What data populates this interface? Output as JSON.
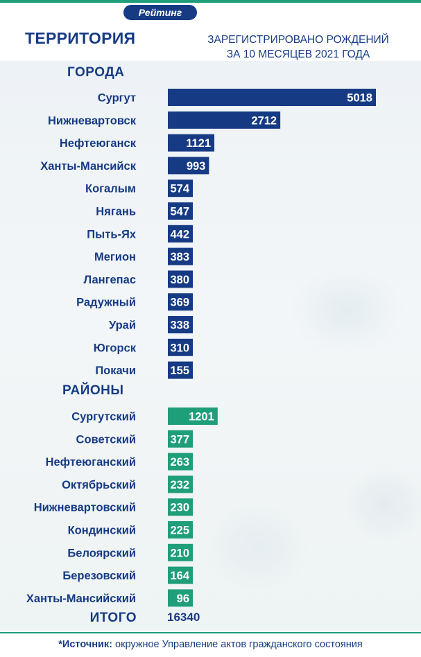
{
  "header": {
    "badge": "Рейтинг",
    "column_territory": "ТЕРРИТОРИЯ",
    "column_value_line1": "ЗАРЕГИСТРИРОВАНО РОЖДЕНИЙ",
    "column_value_line2": "ЗА 10 МЕСЯЦЕВ 2021 ГОДА"
  },
  "colors": {
    "cities": "#163b84",
    "districts": "#1f9e7a",
    "accent": "#1f9e7a"
  },
  "chart_data": {
    "type": "bar",
    "orientation": "horizontal",
    "xlim": [
      0,
      5018
    ],
    "groups": [
      {
        "name": "ГОРОДА",
        "categories": [
          "Сургут",
          "Нижневартовск",
          "Нефтеюганск",
          "Ханты-Мансийск",
          "Когалым",
          "Нягань",
          "Пыть-Ях",
          "Мегион",
          "Лангепас",
          "Радужный",
          "Урай",
          "Югорск",
          "Покачи"
        ],
        "values": [
          5018,
          2712,
          1121,
          993,
          574,
          547,
          442,
          383,
          380,
          369,
          338,
          310,
          155
        ]
      },
      {
        "name": "РАЙОНЫ",
        "categories": [
          "Сургутский",
          "Советский",
          "Нефтеюганский",
          "Октябрьский",
          "Нижневартовский",
          "Кондинский",
          "Белоярский",
          "Березовский",
          "Ханты-Мансийский"
        ],
        "values": [
          1201,
          377,
          263,
          232,
          230,
          225,
          210,
          164,
          96
        ]
      }
    ]
  },
  "total": {
    "label": "ИТОГО",
    "value": "16340"
  },
  "footer": {
    "source_key": "*Источник:",
    "source_text": "окружное Управление актов гражданского состояния"
  }
}
